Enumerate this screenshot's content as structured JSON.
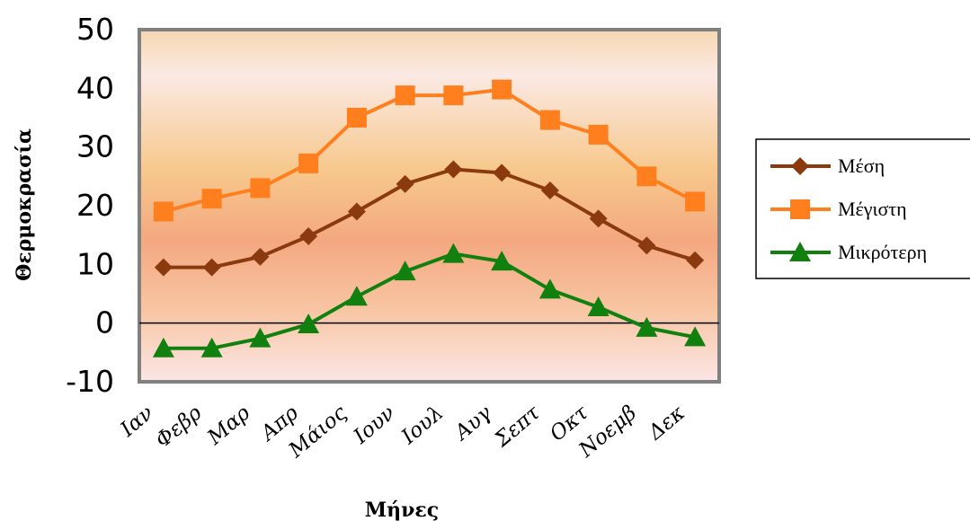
{
  "chart_data": {
    "type": "line",
    "title": "",
    "xlabel": "Μήνες",
    "ylabel": "Θερμοκρασία",
    "categories": [
      "Ιαν",
      "Φεβρ",
      "Μαρ",
      "Απρ",
      "Μάιος",
      "Ιουν",
      "Ιουλ",
      "Αυγ",
      "Σεπτ",
      "Οκτ",
      "Νοεμβ",
      "Δεκ"
    ],
    "ylim": [
      -10,
      50
    ],
    "yticks": [
      "50",
      "40",
      "30",
      "20",
      "10",
      "0",
      "-10"
    ],
    "legend_position": "right",
    "series": [
      {
        "name": "Μέση",
        "color": "#8B3A0F",
        "marker": "diamond",
        "values": [
          9.5,
          9.5,
          11.3,
          14.8,
          19,
          23.7,
          26.2,
          25.6,
          22.6,
          17.8,
          13.2,
          10.7
        ]
      },
      {
        "name": "Μέγιστη",
        "color": "#FF7F1F",
        "marker": "square",
        "values": [
          19,
          21.2,
          23,
          27.2,
          35,
          38.8,
          38.8,
          39.8,
          34.6,
          32.1,
          25,
          20.7
        ]
      },
      {
        "name": "Μικρότερη",
        "color": "#12800E",
        "marker": "triangle",
        "values": [
          -4.3,
          -4.3,
          -2.6,
          -0.2,
          4.5,
          8.8,
          11.8,
          10.5,
          5.7,
          2.7,
          -0.8,
          -2.4
        ]
      }
    ]
  }
}
